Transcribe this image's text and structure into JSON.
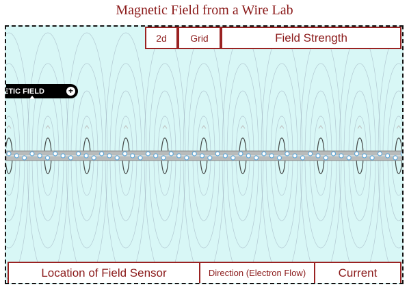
{
  "app": {
    "title": "Magnetic Field from a Wire Lab"
  },
  "toolbar": {
    "view_2d_label": "2d",
    "grid_label": "Grid",
    "field_strength_label": "Field Strength"
  },
  "bottom_bar": {
    "sensor_location_label": "Location of Field Sensor",
    "direction_label": "Direction (Electron Flow)",
    "current_label": "Current"
  },
  "overlay": {
    "pill_label": "ETIC FIELD",
    "pill_icon": "plus-icon"
  },
  "colors": {
    "accent": "#8b1a1a",
    "button_border": "#9a2222",
    "canvas_bg": "#d8f7f6",
    "wire": "#b8bcbc",
    "electron": "#5fa8d8"
  }
}
